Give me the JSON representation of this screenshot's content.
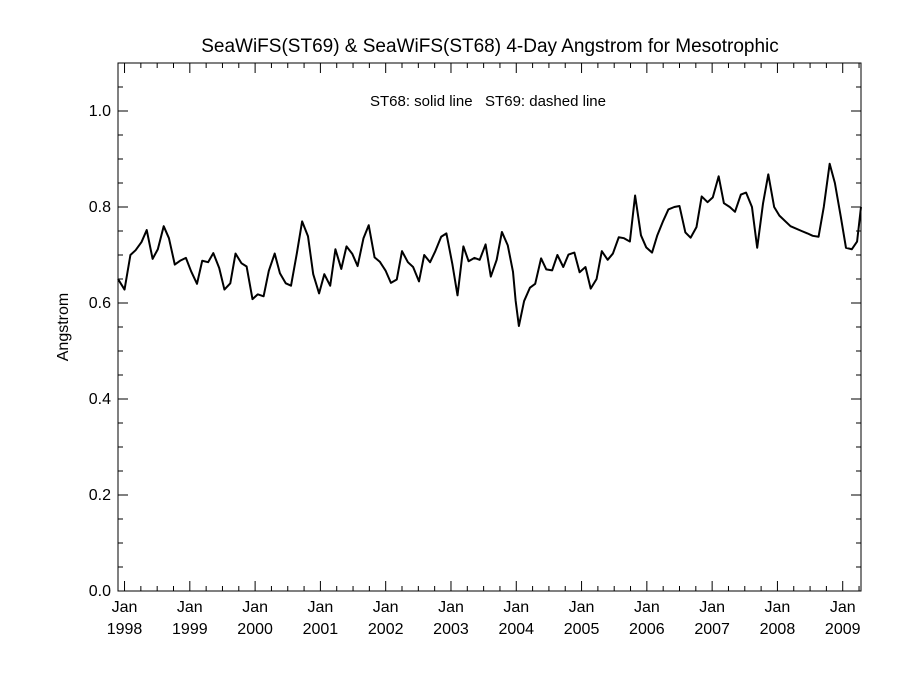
{
  "chart_data": {
    "type": "line",
    "title": "SeaWiFS(ST69) & SeaWiFS(ST68) 4-Day Angstrom for Mesotrophic",
    "annotation": "ST68: solid line   ST69: dashed line",
    "xlabel": "",
    "ylabel": "Angstrom",
    "xlim": [
      1997.9,
      2009.28
    ],
    "ylim": [
      0.0,
      1.1
    ],
    "yticks": [
      0.0,
      0.2,
      0.4,
      0.6,
      0.8,
      1.0
    ],
    "ytick_labels": [
      "0.0",
      "0.2",
      "0.4",
      "0.6",
      "0.8",
      "1.0"
    ],
    "xticks": [
      1998,
      1999,
      2000,
      2001,
      2002,
      2003,
      2004,
      2005,
      2006,
      2007,
      2008,
      2009
    ],
    "xtick_labels_top": [
      "Jan",
      "Jan",
      "Jan",
      "Jan",
      "Jan",
      "Jan",
      "Jan",
      "Jan",
      "Jan",
      "Jan",
      "Jan",
      "Jan"
    ],
    "xtick_labels_bottom": [
      "1998",
      "1999",
      "2000",
      "2001",
      "2002",
      "2003",
      "2004",
      "2005",
      "2006",
      "2007",
      "2008",
      "2009"
    ],
    "grid": false,
    "series": [
      {
        "style": "solid",
        "x": [
          1997.9,
          1998.0,
          1998.09,
          1998.17,
          1998.26,
          1998.34,
          1998.43,
          1998.51,
          1998.6,
          1998.68,
          1998.77,
          1998.85,
          1998.94,
          1999.02,
          1999.11,
          1999.19,
          1999.28,
          1999.36,
          1999.45,
          1999.53,
          1999.62,
          1999.7,
          1999.79,
          1999.87,
          1999.96,
          2000.04,
          2000.13,
          2000.21,
          2000.3,
          2000.38,
          2000.47,
          2000.55,
          2000.64,
          2000.72,
          2000.81,
          2000.89,
          2000.98,
          2001.06,
          2001.15,
          2001.23,
          2001.32,
          2001.4,
          2001.49,
          2001.57,
          2001.66,
          2001.74,
          2001.83,
          2001.91,
          2002.0,
          2002.08,
          2002.17,
          2002.25,
          2002.34,
          2002.42,
          2002.51,
          2002.59,
          2002.68,
          2002.76,
          2002.85,
          2002.93,
          2003.02,
          2003.1,
          2003.19,
          2003.27,
          2003.36,
          2003.44,
          2003.53,
          2003.61,
          2003.7,
          2003.78,
          2003.87,
          2003.95,
          2003.99,
          2004.04,
          2004.12,
          2004.21,
          2004.29,
          2004.38,
          2004.46,
          2004.55,
          2004.63,
          2004.72,
          2004.8,
          2004.89,
          2004.97,
          2005.06,
          2005.14,
          2005.23,
          2005.31,
          2005.4,
          2005.48,
          2005.57,
          2005.65,
          2005.74,
          2005.82,
          2005.91,
          2005.99,
          2006.08,
          2006.16,
          2006.25,
          2006.33,
          2006.42,
          2006.5,
          2006.59,
          2006.67,
          2006.76,
          2006.84,
          2006.93,
          2007.01,
          2007.1,
          2007.18,
          2007.27,
          2007.35,
          2007.44,
          2007.52,
          2007.61,
          2007.69,
          2007.78,
          2007.86,
          2007.95,
          2008.03,
          2008.2,
          2008.37,
          2008.46,
          2008.54,
          2008.63,
          2008.71,
          2008.8,
          2008.88,
          2008.97,
          2009.05,
          2009.14,
          2009.22,
          2009.28
        ],
        "y": [
          0.65,
          0.628,
          0.7,
          0.71,
          0.727,
          0.752,
          0.692,
          0.712,
          0.76,
          0.735,
          0.68,
          0.688,
          0.694,
          0.666,
          0.64,
          0.688,
          0.685,
          0.704,
          0.673,
          0.628,
          0.641,
          0.703,
          0.683,
          0.676,
          0.608,
          0.618,
          0.614,
          0.667,
          0.703,
          0.662,
          0.641,
          0.636,
          0.704,
          0.77,
          0.739,
          0.66,
          0.62,
          0.66,
          0.636,
          0.712,
          0.671,
          0.718,
          0.702,
          0.677,
          0.735,
          0.762,
          0.695,
          0.686,
          0.667,
          0.642,
          0.649,
          0.708,
          0.685,
          0.675,
          0.645,
          0.7,
          0.685,
          0.708,
          0.738,
          0.745,
          0.682,
          0.616,
          0.718,
          0.687,
          0.694,
          0.69,
          0.722,
          0.655,
          0.69,
          0.748,
          0.72,
          0.665,
          0.605,
          0.552,
          0.604,
          0.632,
          0.64,
          0.693,
          0.67,
          0.668,
          0.7,
          0.675,
          0.701,
          0.705,
          0.664,
          0.675,
          0.63,
          0.65,
          0.708,
          0.69,
          0.703,
          0.737,
          0.735,
          0.728,
          0.824,
          0.741,
          0.716,
          0.705,
          0.741,
          0.771,
          0.795,
          0.8,
          0.802,
          0.747,
          0.736,
          0.758,
          0.822,
          0.81,
          0.82,
          0.864,
          0.808,
          0.8,
          0.79,
          0.826,
          0.83,
          0.8,
          0.715,
          0.808,
          0.868,
          0.8,
          0.782,
          0.76,
          0.75,
          0.745,
          0.74,
          0.738,
          0.8,
          0.89,
          0.85,
          0.78,
          0.715,
          0.712,
          0.728,
          0.8
        ]
      }
    ]
  }
}
